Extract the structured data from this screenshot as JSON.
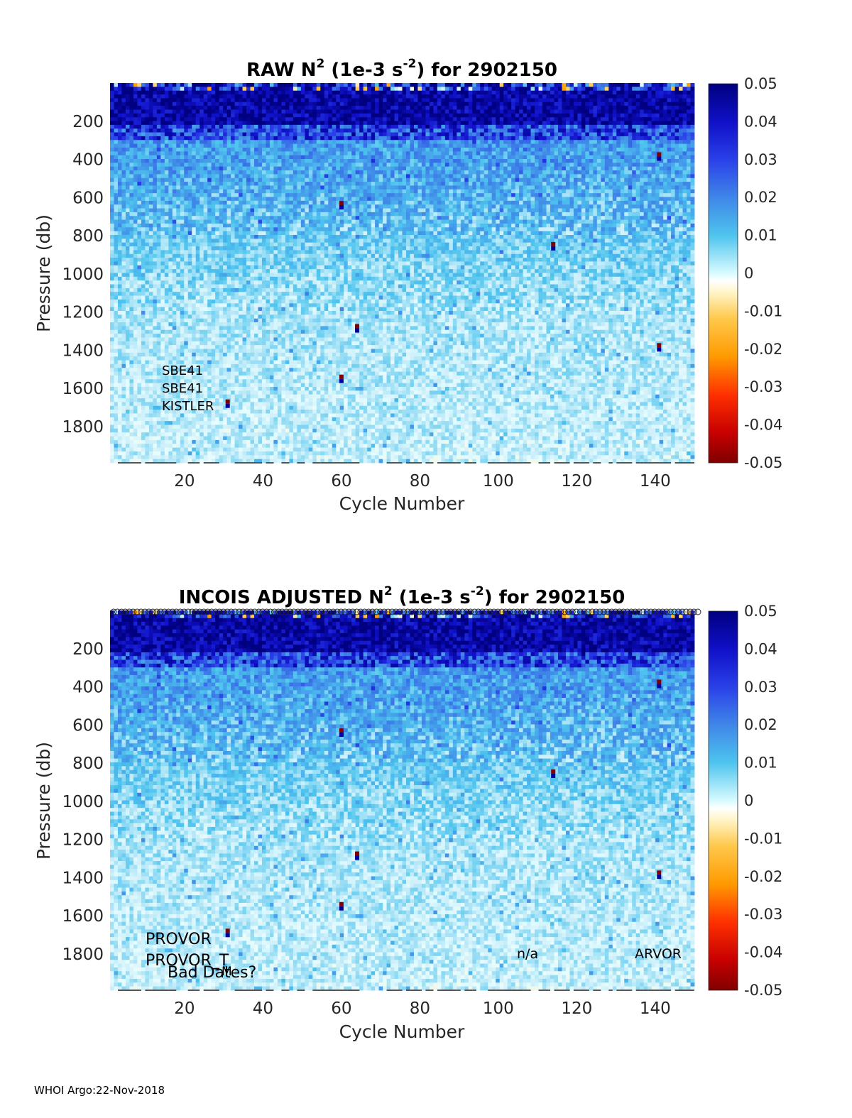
{
  "footer": "WHOI Argo:22-Nov-2018",
  "colorbar": {
    "colormap": "blue-cyan-white-yellow-red (diverging)",
    "ticks": [
      "0.05",
      "0.04",
      "0.03",
      "0.02",
      "0.01",
      "0",
      "-0.01",
      "-0.02",
      "-0.03",
      "-0.04",
      "-0.05"
    ],
    "range": [
      -0.05,
      0.05
    ]
  },
  "chart_data": [
    {
      "type": "heatmap",
      "title_parts": {
        "pre": "RAW N",
        "sup1": "2",
        "mid": " (1e-3 s",
        "sup2": "-2",
        "post": ") for 2902150"
      },
      "xlabel": "Cycle Number",
      "ylabel": "Pressure (db)",
      "x_ticks": [
        "20",
        "40",
        "60",
        "80",
        "100",
        "120",
        "140"
      ],
      "y_ticks": [
        "200",
        "400",
        "600",
        "800",
        "1000",
        "1200",
        "1400",
        "1600",
        "1800"
      ],
      "xlim": [
        1,
        150
      ],
      "ylim": [
        0,
        1990
      ],
      "y_reversed": true,
      "value_range": [
        -0.05,
        0.05
      ],
      "description": "N2 concentrated ~0.05 in upper 250 db, decreasing to ~0.005 at depth",
      "anomalies": [
        {
          "x": 31,
          "y": 1680,
          "v": -0.05
        },
        {
          "x": 60,
          "y": 640,
          "v": -0.05
        },
        {
          "x": 60,
          "y": 1550,
          "v": -0.05
        },
        {
          "x": 64,
          "y": 1285,
          "v": -0.05
        },
        {
          "x": 114,
          "y": 855,
          "v": -0.05
        },
        {
          "x": 141,
          "y": 385,
          "v": -0.05
        },
        {
          "x": 141,
          "y": 1385,
          "v": -0.05
        }
      ],
      "annotations": [
        "SBE41",
        "SBE41",
        "KISTLER"
      ]
    },
    {
      "type": "heatmap",
      "title_parts": {
        "pre": "INCOIS  ADJUSTED N",
        "sup1": "2",
        "mid": " (1e-3 s",
        "sup2": "-2",
        "post": ") for 2902150"
      },
      "xlabel": "Cycle Number",
      "ylabel": "Pressure (db)",
      "x_ticks": [
        "20",
        "40",
        "60",
        "80",
        "100",
        "120",
        "140"
      ],
      "y_ticks": [
        "200",
        "400",
        "600",
        "800",
        "1000",
        "1200",
        "1400",
        "1600",
        "1800"
      ],
      "xlim": [
        1,
        150
      ],
      "ylim": [
        0,
        1990
      ],
      "y_reversed": true,
      "value_range": [
        -0.05,
        0.05
      ],
      "description": "N2 concentrated ~0.05 in upper 250 db, decreasing to ~0.005 at depth",
      "anomalies": [
        {
          "x": 31,
          "y": 1690,
          "v": -0.05
        },
        {
          "x": 60,
          "y": 640,
          "v": -0.05
        },
        {
          "x": 60,
          "y": 1550,
          "v": -0.05
        },
        {
          "x": 64,
          "y": 1285,
          "v": -0.05
        },
        {
          "x": 114,
          "y": 855,
          "v": -0.05
        },
        {
          "x": 141,
          "y": 385,
          "v": -0.05
        },
        {
          "x": 141,
          "y": 1385,
          "v": -0.05
        }
      ],
      "annotations": [
        "PROVOR",
        "PROVOR_T",
        "Bad Dates?",
        "M",
        "n/a",
        "ARVOR"
      ],
      "top_markers": "open circles at every cycle along top edge"
    }
  ]
}
